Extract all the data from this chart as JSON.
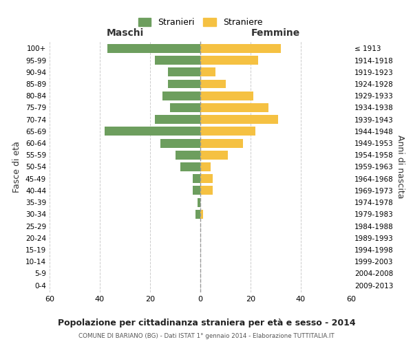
{
  "age_groups": [
    "0-4",
    "5-9",
    "10-14",
    "15-19",
    "20-24",
    "25-29",
    "30-34",
    "35-39",
    "40-44",
    "45-49",
    "50-54",
    "55-59",
    "60-64",
    "65-69",
    "70-74",
    "75-79",
    "80-84",
    "85-89",
    "90-94",
    "95-99",
    "100+"
  ],
  "birth_years": [
    "2009-2013",
    "2004-2008",
    "1999-2003",
    "1994-1998",
    "1989-1993",
    "1984-1988",
    "1979-1983",
    "1974-1978",
    "1969-1973",
    "1964-1968",
    "1959-1963",
    "1954-1958",
    "1949-1953",
    "1944-1948",
    "1939-1943",
    "1934-1938",
    "1929-1933",
    "1924-1928",
    "1919-1923",
    "1914-1918",
    "≤ 1913"
  ],
  "males": [
    37,
    18,
    13,
    13,
    15,
    12,
    18,
    38,
    16,
    10,
    8,
    3,
    3,
    1,
    2,
    0,
    0,
    0,
    0,
    0,
    0
  ],
  "females": [
    32,
    23,
    6,
    10,
    21,
    27,
    31,
    22,
    17,
    11,
    4,
    5,
    5,
    0,
    1,
    0,
    0,
    0,
    0,
    0,
    0
  ],
  "male_color": "#6d9e5e",
  "female_color": "#f5c142",
  "legend_male": "Stranieri",
  "legend_female": "Straniere",
  "xlabel_left": "Maschi",
  "xlabel_right": "Femmine",
  "ylabel_left": "Fasce di età",
  "ylabel_right": "Anni di nascita",
  "title": "Popolazione per cittadinanza straniera per età e sesso - 2014",
  "subtitle": "COMUNE DI BARIANO (BG) - Dati ISTAT 1° gennaio 2014 - Elaborazione TUTTITALIA.IT",
  "xlim": 60,
  "background_color": "#ffffff",
  "grid_color": "#cccccc",
  "centerline_color": "#999999"
}
